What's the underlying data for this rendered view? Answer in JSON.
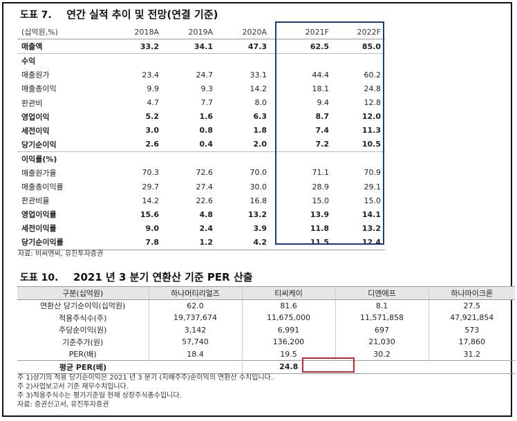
{
  "fig7": {
    "num": "도표 7.",
    "title": "연간 실적 추이 및 전망(연결 기준)",
    "header": [
      "(십억원,%)",
      "2018A",
      "2019A",
      "2020A",
      "2021F",
      "2022F"
    ],
    "rows": [
      {
        "label": "매출액",
        "values": [
          "33.2",
          "34.1",
          "47.3",
          "62.5",
          "85.0"
        ],
        "style": "bold"
      },
      {
        "label": "수익",
        "values": [
          "",
          "",
          "",
          "",
          ""
        ],
        "style": "section"
      },
      {
        "label": "매출원가",
        "values": [
          "23.4",
          "24.7",
          "33.1",
          "44.4",
          "60.2"
        ],
        "style": ""
      },
      {
        "label": "매출총이익",
        "values": [
          "9.9",
          "9.3",
          "14.2",
          "18.1",
          "24.8"
        ],
        "style": ""
      },
      {
        "label": "판관비",
        "values": [
          "4.7",
          "7.7",
          "8.0",
          "9.4",
          "12.8"
        ],
        "style": ""
      },
      {
        "label": "영업이익",
        "values": [
          "5.2",
          "1.6",
          "6.3",
          "8.7",
          "12.0"
        ],
        "style": "bold"
      },
      {
        "label": "세전이익",
        "values": [
          "3.0",
          "0.8",
          "1.8",
          "7.4",
          "11.3"
        ],
        "style": "bold"
      },
      {
        "label": "당기순이익",
        "values": [
          "2.6",
          "0.4",
          "2.0",
          "7.2",
          "10.5"
        ],
        "style": "bold"
      },
      {
        "label": "이익률(%)",
        "values": [
          "",
          "",
          "",
          "",
          ""
        ],
        "style": "section"
      },
      {
        "label": "매출원가율",
        "values": [
          "70.3",
          "72.6",
          "70.0",
          "71.1",
          "70.9"
        ],
        "style": ""
      },
      {
        "label": "매출총이익률",
        "values": [
          "29.7",
          "27.4",
          "30.0",
          "28.9",
          "29.1"
        ],
        "style": ""
      },
      {
        "label": "판관비율",
        "values": [
          "14.2",
          "22.6",
          "16.8",
          "15.0",
          "15.0"
        ],
        "style": ""
      },
      {
        "label": "영업이익률",
        "values": [
          "15.6",
          "4.8",
          "13.2",
          "13.9",
          "14.1"
        ],
        "style": "bold"
      },
      {
        "label": "세전이익률",
        "values": [
          "9.0",
          "2.4",
          "3.9",
          "11.8",
          "13.2"
        ],
        "style": "bold"
      },
      {
        "label": "당기순이익률",
        "values": [
          "7.8",
          "1.2",
          "4.2",
          "11.5",
          "12.4"
        ],
        "style": "bold last"
      }
    ],
    "source": "자료: 비씨엔씨, 유진투자증권"
  },
  "fig10": {
    "num": "도표 10.",
    "title": "2021 년 3 분기 연환산 기준 PER 산출",
    "header": [
      "구분(십억원)",
      "하나머티리얼즈",
      "티씨케이",
      "디엔에프",
      "하나마이크론"
    ],
    "rows": [
      {
        "label": "연환산 당기순이익(십억원)",
        "values": [
          "62.0",
          "81.6",
          "8.1",
          "27.5"
        ]
      },
      {
        "label": "적용주식수(주)",
        "values": [
          "19,737,674",
          "11,675,000",
          "11,571,858",
          "47,921,854"
        ]
      },
      {
        "label": "주당순이익(원)",
        "values": [
          "3,142",
          "6,991",
          "697",
          "573"
        ]
      },
      {
        "label": "기준주가(원)",
        "values": [
          "57,740",
          "136,200",
          "21,030",
          "17,860"
        ]
      },
      {
        "label": "PER(배)",
        "values": [
          "18.4",
          "19.5",
          "30.2",
          "31.2"
        ]
      }
    ],
    "per_label": "평균 PER(배)",
    "per_value": "24.8",
    "notes": [
      "주 1)상기의 적용 당기순이익은 2021 년 3 분기 (지배주주)순이익의 연환산 수치입니다.",
      "주 2)사업보고서 기준 재무수치입니다.",
      "주 3)적용주식수는 평가기준일 현재 상장주식총수입니다.",
      "자료: 증권신고서, 유진투자증권"
    ]
  },
  "colors": {
    "highlight_blue": "#1b3a8a",
    "highlight_red": "#d0262b"
  }
}
